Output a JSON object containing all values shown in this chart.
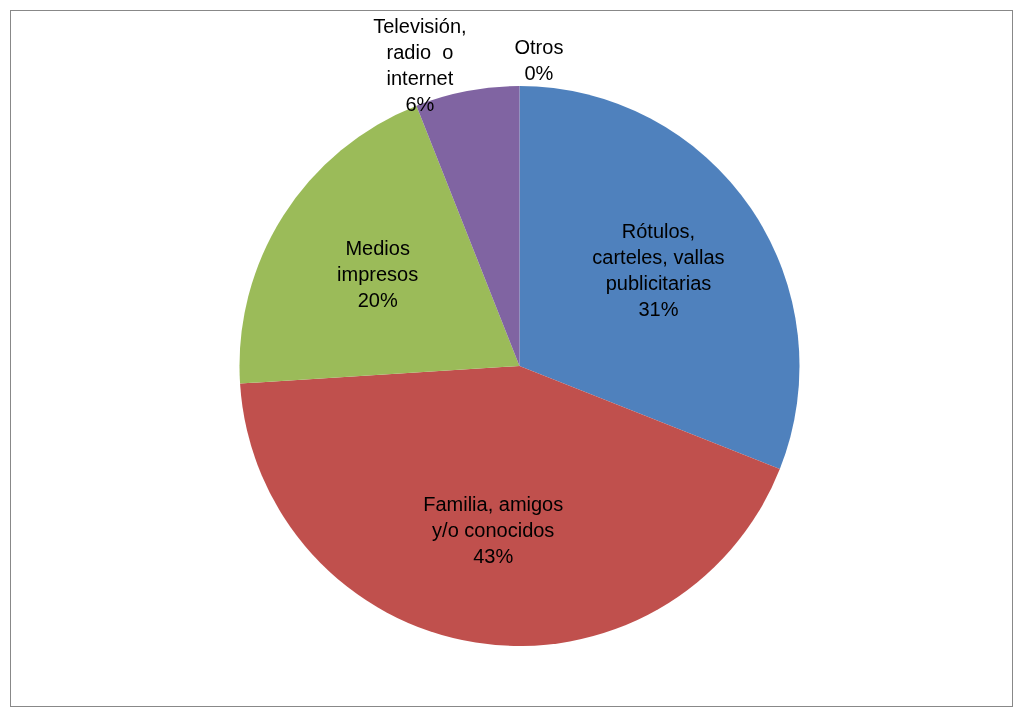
{
  "chart_data": {
    "type": "pie",
    "categories": [
      "Rótulos, carteles, vallas publicitarias",
      "Familia, amigos y/o conocidos",
      "Medios impresos",
      "Televisión, radio  o internet",
      "Otros"
    ],
    "values": [
      31,
      43,
      20,
      6,
      0
    ],
    "colors": [
      "#4f81bd",
      "#c0504d",
      "#9bbb59",
      "#8064a2",
      "#4bacc6"
    ],
    "value_labels": [
      "31%",
      "43%",
      "20%",
      "6%",
      "0%"
    ],
    "legend": false
  }
}
